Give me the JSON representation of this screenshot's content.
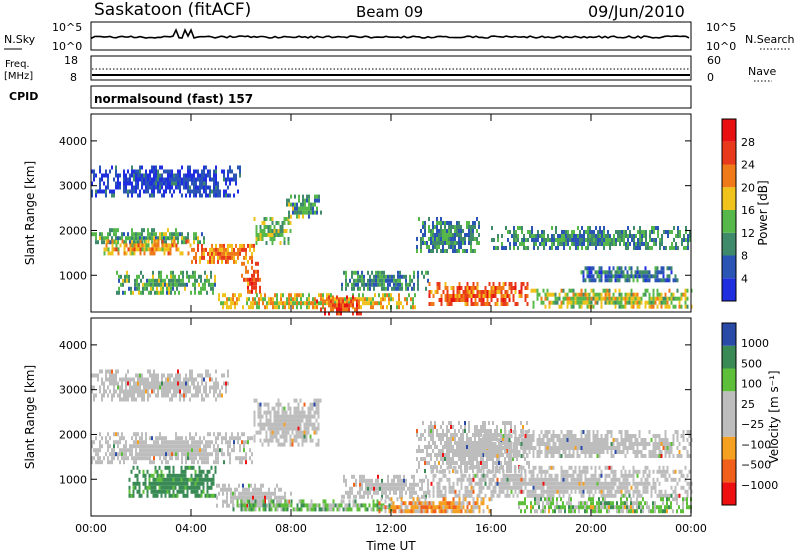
{
  "header": {
    "station": "Saskatoon (fitACF)",
    "beam": "Beam 09",
    "date": "09/Jun/2010"
  },
  "noise_panel": {
    "left_label": "N.Sky",
    "left_ticks": [
      "10^5",
      "10^0"
    ],
    "right_ticks": [
      "10^5",
      "10^0"
    ],
    "right_label": "N.Search"
  },
  "freq_panel": {
    "left_label_1": "Freq.",
    "left_label_2": "[MHz]",
    "left_ticks": [
      "18",
      "8"
    ],
    "right_ticks": [
      "60",
      "0"
    ],
    "right_label": "Nave"
  },
  "cpid_panel": {
    "left_label": "CPID",
    "program": "normalsound (fast) 157"
  },
  "colors": {
    "power_scale": [
      "#1f2fe0",
      "#2a55b5",
      "#3f8a6a",
      "#56b84a",
      "#f0c21c",
      "#f07a18",
      "#e83a1a",
      "#e81010"
    ],
    "velocity_scale": [
      "#ee1010",
      "#f0601a",
      "#f5a020",
      "#bdbdbd",
      "#bdbdbd",
      "#5ec03a",
      "#3a8a55",
      "#2a4aa8"
    ],
    "ground_scatter": "#bdbdbd"
  },
  "chart_data": [
    {
      "type": "heatmap",
      "title": "",
      "parameter": "Power",
      "colorbar_label": "Power [dB]",
      "colorbar_ticks": [
        "28",
        "24",
        "20",
        "16",
        "12",
        "8",
        "4"
      ],
      "xlabel": "Time UT",
      "ylabel": "Slant Range [km]",
      "x_ticks": [
        "00:00",
        "04:00",
        "08:00",
        "12:00",
        "16:00",
        "20:00",
        "00:00"
      ],
      "y_ticks": [
        "4000",
        "3000",
        "2000",
        "1000"
      ],
      "xlim_hours": [
        0,
        24
      ],
      "ylim_km": [
        180,
        4600
      ],
      "regions": [
        {
          "t0": 0.0,
          "t1": 4.5,
          "r0": 1700,
          "r1": 2050,
          "level": 14
        },
        {
          "t0": 0.5,
          "t1": 4.0,
          "r0": 1500,
          "r1": 1800,
          "level": 22
        },
        {
          "t0": 4.0,
          "t1": 6.5,
          "r0": 1300,
          "r1": 1700,
          "level": 24
        },
        {
          "t0": 6.5,
          "t1": 8.0,
          "r0": 1750,
          "r1": 2300,
          "level": 16
        },
        {
          "t0": 7.8,
          "t1": 9.2,
          "r0": 2300,
          "r1": 2800,
          "level": 14
        },
        {
          "t0": 0.0,
          "t1": 6.0,
          "r0": 2800,
          "r1": 3450,
          "level": 6
        },
        {
          "t0": 1.0,
          "t1": 5.0,
          "r0": 600,
          "r1": 1100,
          "level": 14
        },
        {
          "t0": 6.0,
          "t1": 6.8,
          "r0": 600,
          "r1": 1300,
          "level": 26
        },
        {
          "t0": 5.0,
          "t1": 13.0,
          "r0": 300,
          "r1": 600,
          "level": 20
        },
        {
          "t0": 9.0,
          "t1": 11.0,
          "r0": 180,
          "r1": 550,
          "level": 28
        },
        {
          "t0": 10.0,
          "t1": 13.5,
          "r0": 700,
          "r1": 1100,
          "level": 12
        },
        {
          "t0": 13.0,
          "t1": 15.5,
          "r0": 1500,
          "r1": 2300,
          "level": 12
        },
        {
          "t0": 13.5,
          "t1": 17.5,
          "r0": 350,
          "r1": 850,
          "level": 26
        },
        {
          "t0": 17.5,
          "t1": 24.0,
          "r0": 300,
          "r1": 700,
          "level": 18
        },
        {
          "t0": 16.0,
          "t1": 24.0,
          "r0": 1600,
          "r1": 2100,
          "level": 12
        },
        {
          "t0": 19.5,
          "t1": 23.5,
          "r0": 900,
          "r1": 1200,
          "level": 10
        }
      ]
    },
    {
      "type": "heatmap",
      "title": "",
      "parameter": "Velocity",
      "colorbar_label": "Velocity [m s⁻¹]",
      "colorbar_ticks": [
        "1000",
        "500",
        "100",
        "25",
        "−25",
        "−100",
        "−500",
        "−1000"
      ],
      "xlabel": "Time UT",
      "ylabel": "Slant Range [km]",
      "x_ticks": [
        "00:00",
        "04:00",
        "08:00",
        "12:00",
        "16:00",
        "20:00",
        "00:00"
      ],
      "y_ticks": [
        "4000",
        "3000",
        "2000",
        "1000"
      ],
      "xlim_hours": [
        0,
        24
      ],
      "ylim_km": [
        180,
        4600
      ],
      "regions": [
        {
          "t0": 0.0,
          "t1": 6.5,
          "r0": 1400,
          "r1": 2050,
          "kind": "ground"
        },
        {
          "t0": 6.5,
          "t1": 9.2,
          "r0": 1750,
          "r1": 2800,
          "kind": "ground"
        },
        {
          "t0": 0.0,
          "t1": 5.5,
          "r0": 2800,
          "r1": 3450,
          "kind": "ground"
        },
        {
          "t0": 1.5,
          "t1": 5.0,
          "r0": 600,
          "r1": 1300,
          "velocity": 150
        },
        {
          "t0": 5.0,
          "t1": 8.0,
          "r0": 400,
          "r1": 900,
          "kind": "ground"
        },
        {
          "t0": 5.5,
          "t1": 12.0,
          "r0": 300,
          "r1": 550,
          "velocity": 60
        },
        {
          "t0": 10.0,
          "t1": 13.5,
          "r0": 650,
          "r1": 1100,
          "kind": "ground"
        },
        {
          "t0": 13.0,
          "t1": 17.5,
          "r0": 1200,
          "r1": 2300,
          "kind": "ground"
        },
        {
          "t0": 13.5,
          "t1": 24.0,
          "r0": 600,
          "r1": 1300,
          "kind": "ground"
        },
        {
          "t0": 15.5,
          "t1": 24.0,
          "r0": 1500,
          "r1": 2100,
          "kind": "ground"
        },
        {
          "t0": 17.0,
          "t1": 24.0,
          "r0": 250,
          "r1": 600,
          "velocity": 40
        },
        {
          "t0": 11.5,
          "t1": 16.0,
          "r0": 250,
          "r1": 600,
          "velocity": -60
        }
      ]
    }
  ]
}
